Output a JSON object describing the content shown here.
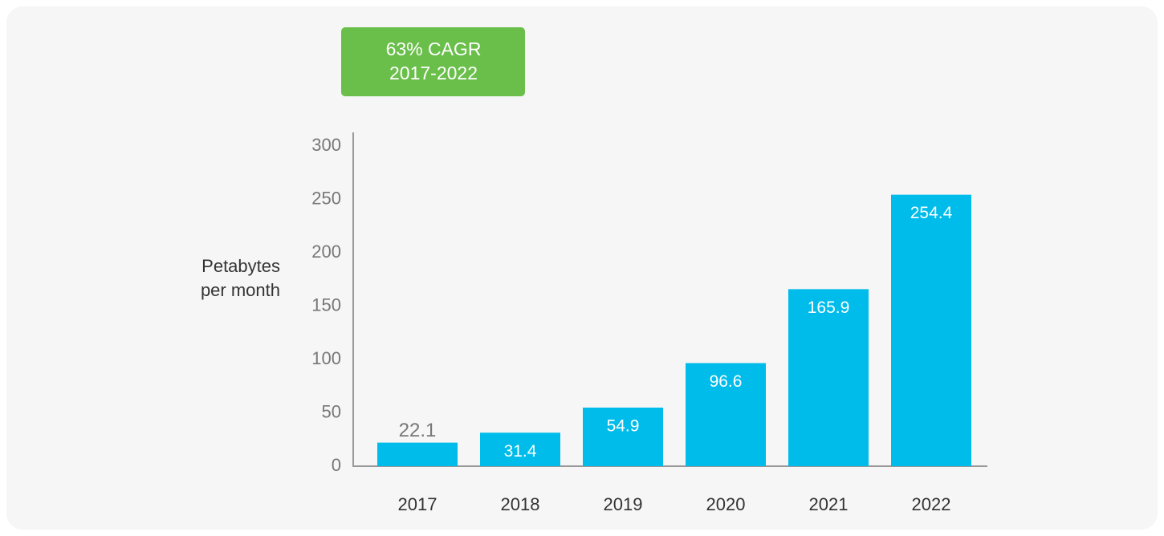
{
  "chart_data": {
    "type": "bar",
    "annotation": [
      "63% CAGR",
      "2017-2022"
    ],
    "ylabel": [
      "Petabytes",
      "per month"
    ],
    "categories": [
      "2017",
      "2018",
      "2019",
      "2020",
      "2021",
      "2022"
    ],
    "values": [
      22.1,
      31.4,
      54.9,
      96.6,
      165.9,
      254.4
    ],
    "color": "#00bceb",
    "ylim": [
      0,
      300
    ],
    "yticks": [
      0,
      50,
      100,
      150,
      200,
      250,
      300
    ],
    "grid": false
  }
}
